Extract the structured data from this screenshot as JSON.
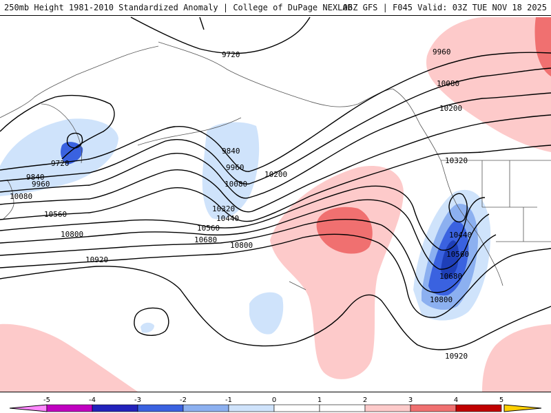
{
  "header": {
    "left": "250mb Height 1981-2010 Standardized Anomaly | College of DuPage NEXLAB",
    "right": "06Z GFS | F045 Valid: 03Z TUE NOV 18 2025"
  },
  "contour_labels": {
    "c9720_n": "9720",
    "c9960_ne": "9960",
    "c10080_ne": "10080",
    "c10200_ne": "10200",
    "c9720_w": "9720",
    "c9840_w": "9840",
    "c9960_w": "9960",
    "c10080_w": "10080",
    "c10560_w": "10560",
    "c10800_w": "10800",
    "c10920_w": "10920",
    "c9840_c": "9840",
    "c9960_c": "9960",
    "c10080_c": "10080",
    "c10200_c": "10200",
    "c10320_c": "10320",
    "c10440_c": "10440",
    "c10560_c": "10560",
    "c10680_c": "10680",
    "c10800_c": "10800",
    "c10320_e": "10320",
    "c10440_e": "10440",
    "c10560_e": "10560",
    "c10680_e": "10680",
    "c10800_e": "10800",
    "c10920_se": "10920"
  },
  "colorbar": {
    "ticks": [
      "-5",
      "-4",
      "-3",
      "-2",
      "-1",
      "0",
      "1",
      "2",
      "3",
      "4",
      "5"
    ],
    "colors": [
      "#c000c0",
      "#2222bb",
      "#3a62e0",
      "#8cb0f0",
      "#cfe3fb",
      "#ffffff",
      "#ffffff",
      "#fdcaca",
      "#f07070",
      "#c00000",
      "#ffa200"
    ],
    "end_colors": {
      "left": "#ff88ff",
      "right": "#ffd000"
    }
  },
  "anomaly_colors": {
    "neg1": "#cfe3fb",
    "neg2": "#8cb0f0",
    "neg3": "#3a62e0",
    "neg4": "#1e3fb8",
    "pos1": "#fdcaca",
    "pos2": "#f07070"
  }
}
